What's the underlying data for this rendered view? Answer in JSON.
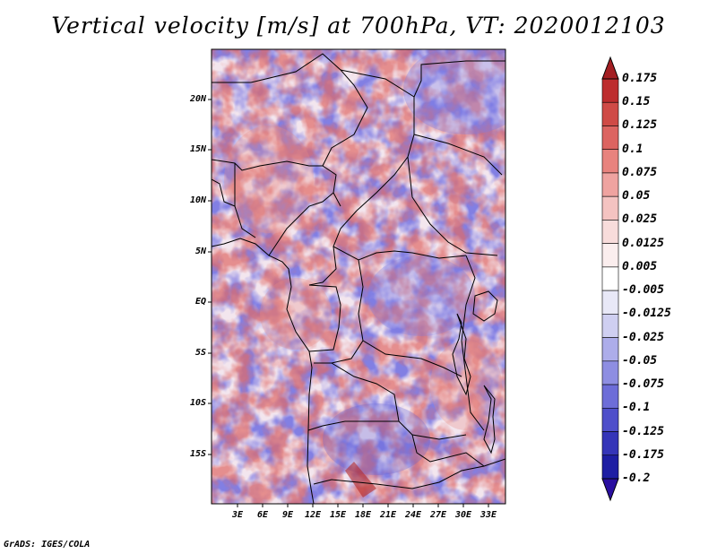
{
  "title": "Vertical velocity [m/s] at 700hPa, VT: 2020012103",
  "footer": "GrADS: IGES/COLA",
  "map": {
    "lat_labels": [
      "20N",
      "15N",
      "10N",
      "5N",
      "EQ",
      "5S",
      "10S",
      "15S"
    ],
    "lon_labels": [
      "3E",
      "6E",
      "9E",
      "12E",
      "15E",
      "18E",
      "21E",
      "24E",
      "27E",
      "30E",
      "33E"
    ],
    "border_color": "#000000"
  },
  "colorbar": {
    "labels": [
      "0.175",
      "0.15",
      "0.125",
      "0.1",
      "0.075",
      "0.05",
      "0.025",
      "0.0125",
      "0.005",
      "-0.005",
      "-0.0125",
      "-0.025",
      "-0.05",
      "-0.075",
      "-0.1",
      "-0.125",
      "-0.175",
      "-0.2"
    ],
    "colors": [
      "#a31e22",
      "#bd2d2e",
      "#cf4a46",
      "#dc6461",
      "#e8837e",
      "#efa3a0",
      "#f4c3c1",
      "#f8dcdb",
      "#fbeeee",
      "#ffffff",
      "#e8e8f7",
      "#cfcff1",
      "#adadea",
      "#8e8ee2",
      "#6d6dd8",
      "#4f4fca",
      "#3535b8",
      "#1e1ea3",
      "#2a0fa0"
    ]
  }
}
